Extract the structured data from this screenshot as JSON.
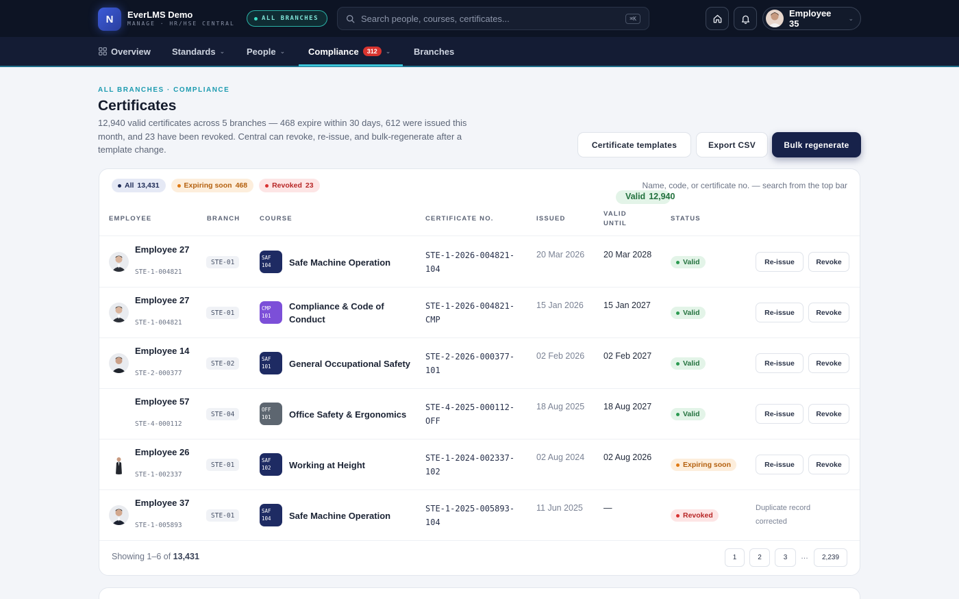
{
  "app": {
    "logo_letter": "N",
    "name": "EverLMS Demo",
    "subtitle": "MANAGE · HR/HSE CENTRAL",
    "branch_scope": "ALL BRANCHES",
    "search_placeholder": "Search people, courses, certificates...",
    "search_shortcut": "⌘K",
    "user_name": "Employee 35"
  },
  "nav": {
    "overview": "Overview",
    "standards": "Standards",
    "people": "People",
    "compliance": "Compliance",
    "compliance_badge": "312",
    "branches": "Branches"
  },
  "header": {
    "breadcrumb": "ALL BRANCHES · COMPLIANCE",
    "title": "Certificates",
    "description": "12,940 valid certificates across 5 branches — 468 expire within 30 days, 612 were issued this month, and 23 have been revoked. Central can revoke, re-issue, and bulk-regenerate after a template change.",
    "btn_templates": "Certificate templates",
    "btn_export": "Export CSV",
    "btn_bulk": "Bulk regenerate"
  },
  "filters": {
    "all_label": "All",
    "all_count": "13,431",
    "valid_label": "Valid",
    "valid_count": "12,940",
    "expiring_label": "Expiring soon",
    "expiring_count": "468",
    "revoked_label": "Revoked",
    "revoked_count": "23",
    "hint": "Name, code, or certificate no. — search from the top bar"
  },
  "columns": {
    "employee": "EMPLOYEE",
    "branch": "BRANCH",
    "course": "COURSE",
    "certificate": "CERTIFICATE NO.",
    "issued": "ISSUED",
    "valid_until": "VALID UNTIL",
    "status": "STATUS"
  },
  "colors": {
    "course_saf": "#1e2b63",
    "course_cmp": "#7c4fd8",
    "course_off": "#5d6670",
    "accent": "#1c9bb0"
  },
  "rows": [
    {
      "name": "Employee 27",
      "code": "STE-1-004821",
      "branch": "STE-01",
      "course_code": "SAF 104",
      "course": "Safe Machine Operation",
      "cert": "STE-1-2026-004821-104",
      "issued": "20 Mar 2026",
      "valid_until": "20 Mar 2028",
      "status": "Valid",
      "reissue": "Re-issue",
      "revoke": "Revoke"
    },
    {
      "name": "Employee 27",
      "code": "STE-1-004821",
      "branch": "STE-01",
      "course_code": "CMP 101",
      "course": "Compliance & Code of Conduct",
      "cert": "STE-1-2026-004821-CMP",
      "issued": "15 Jan 2026",
      "valid_until": "15 Jan 2027",
      "status": "Valid",
      "reissue": "Re-issue",
      "revoke": "Revoke"
    },
    {
      "name": "Employee 14",
      "code": "STE-2-000377",
      "branch": "STE-02",
      "course_code": "SAF 101",
      "course": "General Occupational Safety",
      "cert": "STE-2-2026-000377-101",
      "issued": "02 Feb 2026",
      "valid_until": "02 Feb 2027",
      "status": "Valid",
      "reissue": "Re-issue",
      "revoke": "Revoke"
    },
    {
      "name": "Employee 57",
      "code": "STE-4-000112",
      "branch": "STE-04",
      "course_code": "OFF 101",
      "course": "Office Safety & Ergonomics",
      "cert": "STE-4-2025-000112-OFF",
      "issued": "18 Aug 2025",
      "valid_until": "18 Aug 2027",
      "status": "Valid",
      "reissue": "Re-issue",
      "revoke": "Revoke"
    },
    {
      "name": "Employee 26",
      "code": "STE-1-002337",
      "branch": "STE-01",
      "course_code": "SAF 102",
      "course": "Working at Height",
      "cert": "STE-1-2024-002337-102",
      "issued": "02 Aug 2024",
      "valid_until": "02 Aug 2026",
      "status": "Expiring soon",
      "reissue": "Re-issue",
      "revoke": "Revoke"
    },
    {
      "name": "Employee 37",
      "code": "STE-1-005893",
      "branch": "STE-01",
      "course_code": "SAF 104",
      "course": "Safe Machine Operation",
      "cert": "STE-1-2025-005893-104",
      "issued": "11 Jun 2025",
      "valid_until": "—",
      "status": "Revoked",
      "note": "Duplicate record corrected"
    }
  ],
  "footer": {
    "showing_prefix": "Showing 1–6 of",
    "total": "13,431",
    "pages": [
      "1",
      "2",
      "3"
    ],
    "ellipsis": "…",
    "last_page": "2,239"
  }
}
